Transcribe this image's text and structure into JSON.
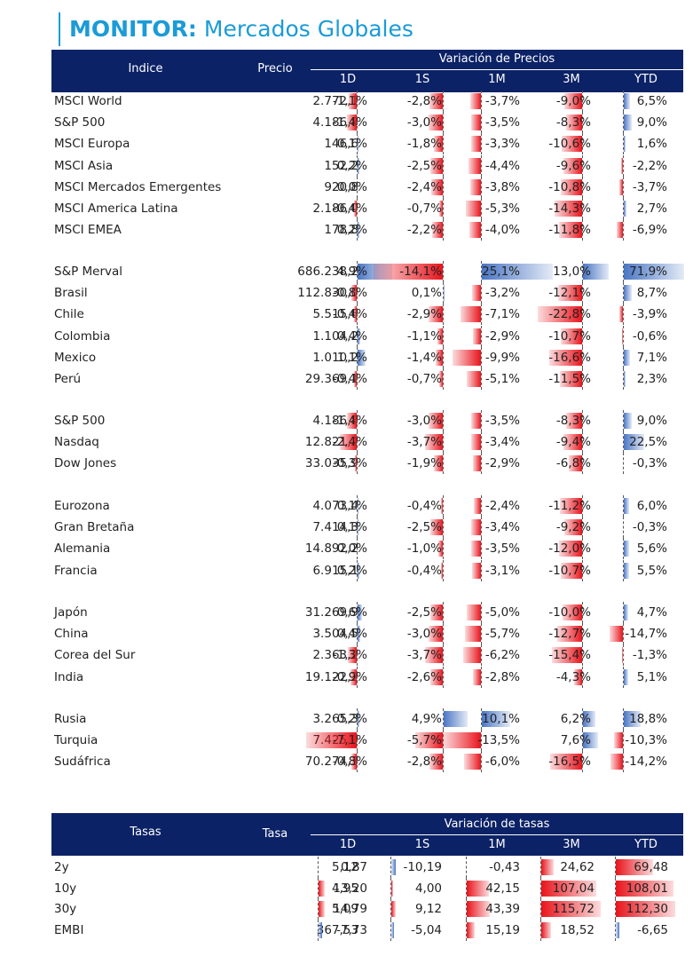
{
  "title": {
    "bold": "MONITOR:",
    "rest": " Mercados Globales"
  },
  "header1": {
    "indice": "Indice",
    "precio": "Precio",
    "group": "Variación de Precios",
    "cols": [
      "1D",
      "1S",
      "1M",
      "3M",
      "YTD"
    ]
  },
  "groups": [
    [
      {
        "name": "MSCI World",
        "price": "2.772,1",
        "v": [
          "-1,1%",
          "-2,8%",
          "-3,7%",
          "-9,0%",
          "6,5%"
        ]
      },
      {
        "name": "S&P 500",
        "price": "4.186,8",
        "v": [
          "-1,4%",
          "-3,0%",
          "-3,5%",
          "-8,3%",
          "9,0%"
        ]
      },
      {
        "name": "MSCI Europa",
        "price": "146,6",
        "v": [
          "0,1%",
          "-1,8%",
          "-3,3%",
          "-10,6%",
          "1,6%"
        ]
      },
      {
        "name": "MSCI Asia",
        "price": "152,2",
        "v": [
          "0,2%",
          "-2,5%",
          "-4,4%",
          "-9,6%",
          "-2,2%"
        ]
      },
      {
        "name": "MSCI Mercados Emergentes",
        "price": "920,8",
        "v": [
          "0,0%",
          "-2,4%",
          "-3,8%",
          "-10,8%",
          "-3,7%"
        ]
      },
      {
        "name": "MSCI America Latina",
        "price": "2.186,0",
        "v": [
          "-0,4%",
          "-0,7%",
          "-5,3%",
          "-14,3%",
          "2,7%"
        ]
      },
      {
        "name": "MSCI EMEA",
        "price": "178,8",
        "v": [
          "0,2%",
          "-2,2%",
          "-4,0%",
          "-11,8%",
          "-6,9%"
        ]
      }
    ],
    [
      {
        "name": "S&P Merval",
        "price": "686.238,2",
        "v": [
          "4,9%",
          "-14,1%",
          "25,1%",
          "13,0%",
          "71,9%"
        ]
      },
      {
        "name": "Brasil",
        "price": "112.830,0",
        "v": [
          "-0,8%",
          "0,1%",
          "-3,2%",
          "-12,1%",
          "8,7%"
        ]
      },
      {
        "name": "Chile",
        "price": "5.515,6",
        "v": [
          "-0,4%",
          "-2,9%",
          "-7,1%",
          "-22,8%",
          "-3,9%"
        ]
      },
      {
        "name": "Colombia",
        "price": "1.104,2",
        "v": [
          "0,4%",
          "-1,1%",
          "-2,9%",
          "-10,7%",
          "-0,6%"
        ]
      },
      {
        "name": "Mexico",
        "price": "1.010,2",
        "v": [
          "1,1%",
          "-1,4%",
          "-9,9%",
          "-16,6%",
          "7,1%"
        ]
      },
      {
        "name": "Perú",
        "price": "29.369,1",
        "v": [
          "-0,4%",
          "-0,7%",
          "-5,1%",
          "-11,5%",
          "2,3%"
        ]
      }
    ],
    [
      {
        "name": "S&P 500",
        "price": "4.186,8",
        "v": [
          "-1,4%",
          "-3,0%",
          "-3,5%",
          "-8,3%",
          "9,0%"
        ]
      },
      {
        "name": "Nasdaq",
        "price": "12.821,2",
        "v": [
          "-2,4%",
          "-3,7%",
          "-3,4%",
          "-9,4%",
          "22,5%"
        ]
      },
      {
        "name": "Dow Jones",
        "price": "33.035,9",
        "v": [
          "-0,3%",
          "-1,9%",
          "-2,9%",
          "-6,8%",
          "-0,3%"
        ]
      }
    ],
    [
      {
        "name": "Eurozona",
        "price": "4.073,4",
        "v": [
          "0,1%",
          "-0,4%",
          "-2,4%",
          "-11,2%",
          "6,0%"
        ]
      },
      {
        "name": "Gran Bretaña",
        "price": "7.414,3",
        "v": [
          "0,1%",
          "-2,5%",
          "-3,4%",
          "-9,2%",
          "-0,3%"
        ]
      },
      {
        "name": "Alemania",
        "price": "14.892,2",
        "v": [
          "0,0%",
          "-1,0%",
          "-3,5%",
          "-12,0%",
          "5,6%"
        ]
      },
      {
        "name": "Francia",
        "price": "6.915,1",
        "v": [
          "0,2%",
          "-0,4%",
          "-3,1%",
          "-10,7%",
          "5,5%"
        ]
      }
    ],
    [
      {
        "name": "Japón",
        "price": "31.269,9",
        "v": [
          "0,6%",
          "-2,5%",
          "-5,0%",
          "-10,0%",
          "4,7%"
        ]
      },
      {
        "name": "China",
        "price": "3.504,5",
        "v": [
          "0,4%",
          "-3,0%",
          "-5,7%",
          "-12,7%",
          "-14,7%"
        ]
      },
      {
        "name": "Corea del Sur",
        "price": "2.363,2",
        "v": [
          "-1,3%",
          "-3,7%",
          "-6,2%",
          "-15,4%",
          "-1,3%"
        ]
      },
      {
        "name": "India",
        "price": "19.122,2",
        "v": [
          "-0,9%",
          "-2,6%",
          "-2,8%",
          "-4,3%",
          "5,1%"
        ]
      }
    ],
    [
      {
        "name": "Rusia",
        "price": "3.265,3",
        "v": [
          "0,2%",
          "4,9%",
          "10,1%",
          "6,2%",
          "18,8%"
        ]
      },
      {
        "name": "Turquia",
        "price": "7.425,0",
        "v": [
          "-7,1%",
          "-5,7%",
          "-13,5%",
          "7,6%",
          "-10,3%"
        ]
      },
      {
        "name": "Sudáfrica",
        "price": "70.274,3",
        "v": [
          "-0,8%",
          "-2,8%",
          "-6,0%",
          "-16,5%",
          "-14,2%"
        ]
      }
    ]
  ],
  "header2": {
    "tasas": "Tasas",
    "tasa": "Tasa",
    "group": "Variación de tasas",
    "cols": [
      "1D",
      "1S",
      "1M",
      "3M",
      "YTD"
    ]
  },
  "rates": [
    {
      "name": "2y",
      "price": "5,12",
      "v": [
        "0,87",
        "-10,19",
        "-0,43",
        "24,62",
        "69,48"
      ]
    },
    {
      "name": "10y",
      "price": "4,95",
      "v": [
        "13,20",
        "4,00",
        "42,15",
        "107,04",
        "108,01"
      ]
    },
    {
      "name": "30y",
      "price": "5,09",
      "v": [
        "14,79",
        "9,12",
        "43,39",
        "115,72",
        "112,30"
      ]
    },
    {
      "name": "EMBI",
      "price": "367,53",
      "v": [
        "-7,73",
        "-5,04",
        "15,19",
        "18,52",
        "-6,65"
      ]
    }
  ]
}
